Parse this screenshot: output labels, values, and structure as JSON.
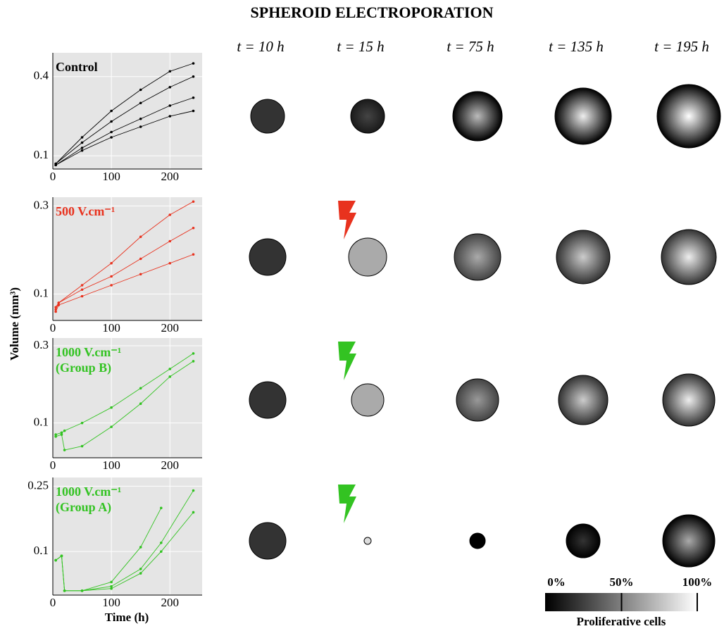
{
  "title": "SPHEROID ELECTROPORATION",
  "time_headers": [
    "t = 10 h",
    "t = 15 h",
    "t = 75 h",
    "t = 135 h",
    "t = 195 h"
  ],
  "ylabel": "Volume (mm³)",
  "xlabel": "Time (h)",
  "colorbar": {
    "label": "Proliferative cells",
    "ticks": [
      {
        "value": 0,
        "label": "0%"
      },
      {
        "value": 50,
        "label": "50%"
      },
      {
        "value": 100,
        "label": "100%"
      }
    ]
  },
  "chart_data": [
    {
      "type": "line",
      "annotation": [
        "Control"
      ],
      "label_color": "#000000",
      "xlim": [
        0,
        255
      ],
      "xticks": [
        0,
        100,
        200
      ],
      "ylim": [
        0.05,
        0.49
      ],
      "yticks": [
        0.1,
        0.4
      ],
      "x": [
        5,
        50,
        100,
        150,
        200,
        240
      ],
      "series": [
        {
          "color": "#000000",
          "values": [
            0.07,
            0.17,
            0.27,
            0.35,
            0.42,
            0.45
          ]
        },
        {
          "color": "#000000",
          "values": [
            0.07,
            0.15,
            0.23,
            0.3,
            0.36,
            0.4
          ]
        },
        {
          "color": "#000000",
          "values": [
            0.065,
            0.13,
            0.19,
            0.24,
            0.29,
            0.32
          ]
        },
        {
          "color": "#000000",
          "values": [
            0.065,
            0.12,
            0.17,
            0.21,
            0.25,
            0.27
          ]
        }
      ]
    },
    {
      "type": "line",
      "annotation": [
        "500 V.cm⁻¹"
      ],
      "label_color": "#e8321e",
      "xlim": [
        0,
        255
      ],
      "xticks": [
        0,
        100,
        200
      ],
      "ylim": [
        0.04,
        0.32
      ],
      "yticks": [
        0.1,
        0.3
      ],
      "x": [
        5,
        10,
        50,
        100,
        150,
        200,
        240
      ],
      "series": [
        {
          "color": "#e8321e",
          "values": [
            0.07,
            0.08,
            0.12,
            0.17,
            0.23,
            0.28,
            0.31
          ]
        },
        {
          "color": "#e8321e",
          "values": [
            0.065,
            0.08,
            0.11,
            0.14,
            0.18,
            0.22,
            0.25
          ]
        },
        {
          "color": "#e8321e",
          "values": [
            0.06,
            0.075,
            0.095,
            0.12,
            0.145,
            0.17,
            0.19
          ]
        }
      ]
    },
    {
      "type": "line",
      "annotation": [
        "1000 V.cm⁻¹",
        "(Group B)"
      ],
      "label_color": "#33c322",
      "xlim": [
        0,
        255
      ],
      "xticks": [
        0,
        100,
        200
      ],
      "ylim": [
        0.01,
        0.32
      ],
      "yticks": [
        0.1,
        0.3
      ],
      "x": [
        5,
        15,
        20,
        50,
        100,
        150,
        200,
        240
      ],
      "series": [
        {
          "color": "#33c322",
          "values": [
            0.07,
            0.075,
            0.08,
            0.1,
            0.14,
            0.19,
            0.24,
            0.28
          ]
        },
        {
          "color": "#33c322",
          "values": [
            0.065,
            0.07,
            0.03,
            0.04,
            0.09,
            0.15,
            0.22,
            0.26
          ]
        }
      ]
    },
    {
      "type": "line",
      "annotation": [
        "1000 V.cm⁻¹",
        "(Group A)"
      ],
      "label_color": "#33c322",
      "xlim": [
        0,
        255
      ],
      "xticks": [
        0,
        100,
        200
      ],
      "ylim": [
        0,
        0.27
      ],
      "yticks": [
        0.1,
        0.25
      ],
      "x": [
        5,
        15,
        20,
        50,
        100,
        150,
        185,
        240
      ],
      "series": [
        {
          "color": "#33c322",
          "values": [
            0.08,
            0.09,
            0.01,
            0.01,
            0.03,
            0.11,
            0.2,
            null
          ]
        },
        {
          "color": "#33c322",
          "values": [
            0.08,
            0.09,
            0.01,
            0.01,
            0.02,
            0.06,
            0.12,
            0.24
          ]
        },
        {
          "color": "#33c322",
          "values": [
            0.08,
            0.09,
            0.01,
            0.01,
            0.015,
            0.05,
            0.1,
            0.19
          ]
        }
      ]
    }
  ]
}
